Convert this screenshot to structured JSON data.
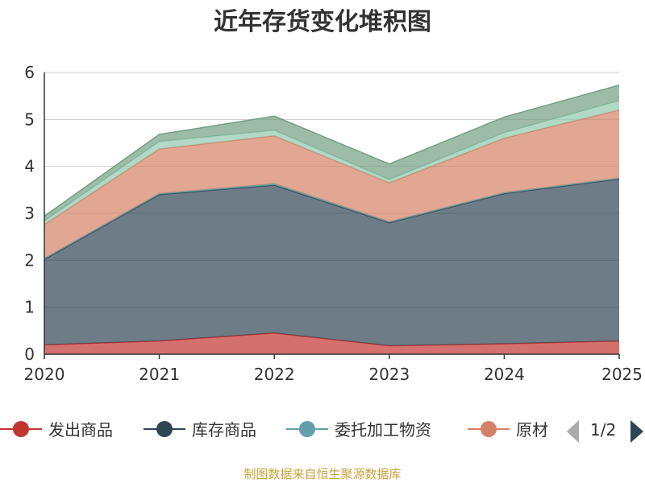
{
  "chart_data": {
    "type": "area",
    "stacked": true,
    "title": "近年存货变化堆积图",
    "ylabel": "",
    "x": [
      "2020",
      "2021",
      "2022",
      "2023",
      "2024",
      "2025"
    ],
    "ylim": [
      0,
      6
    ],
    "yticks": [
      "0",
      "1",
      "2",
      "3",
      "4",
      "5",
      "6"
    ],
    "grid": true,
    "series": [
      {
        "name": "发出商品",
        "color": "#c23531",
        "values": [
          0.2,
          0.28,
          0.45,
          0.18,
          0.22,
          0.28
        ]
      },
      {
        "name": "库存商品",
        "color": "#2f4554",
        "values": [
          1.82,
          3.12,
          3.15,
          2.62,
          3.2,
          3.45
        ]
      },
      {
        "name": "委托加工物资",
        "color": "#61a0a8",
        "values": [
          0.02,
          0.02,
          0.03,
          0.02,
          0.02,
          0.02
        ]
      },
      {
        "name": "原材料",
        "color": "#d48265",
        "values": [
          0.72,
          0.95,
          1.02,
          0.83,
          1.16,
          1.45
        ]
      },
      {
        "name": "",
        "color": "#91c7ae",
        "values": [
          0.08,
          0.16,
          0.12,
          0.07,
          0.12,
          0.2
        ]
      },
      {
        "name": "",
        "color": "#749f83",
        "values": [
          0.1,
          0.15,
          0.3,
          0.33,
          0.33,
          0.33
        ]
      }
    ],
    "legend": {
      "position": "bottom",
      "items": [
        "发出商品",
        "库存商品",
        "委托加工物资",
        "原材"
      ],
      "page": "1/2"
    }
  },
  "source_text": "制图数据来自恒生聚源数据库"
}
